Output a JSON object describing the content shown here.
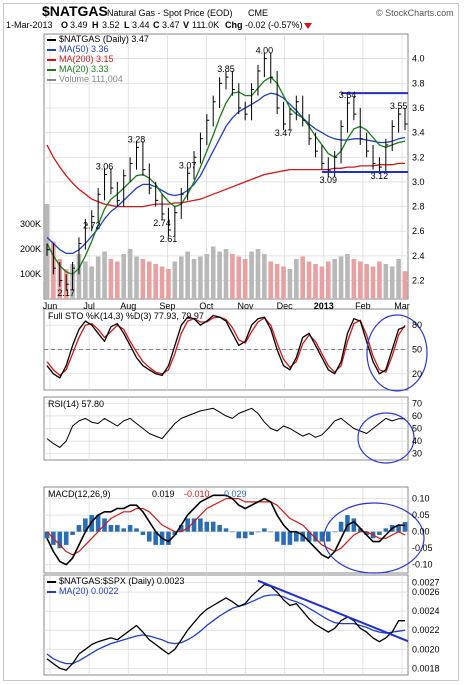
{
  "header": {
    "symbol": "$NATGAS",
    "name": "Natural Gas - Spot Price (EOD)",
    "exchange": "CME",
    "brand": "© StockCharts.com",
    "date": "1-Mar-2013",
    "open_label": "O",
    "open": "3.49",
    "high_label": "H",
    "high": "3.52",
    "low_label": "L",
    "low": "3.44",
    "close_label": "C",
    "close": "3.47",
    "volume_label": "V",
    "volume": "111.0K",
    "change_label": "Chg",
    "change": "-0.02 (-0.57%)"
  },
  "colors": {
    "price": "#000000",
    "ma50": "#1f3fbf",
    "ma200": "#cc1a1a",
    "ma20": "#1a7a1a",
    "volume_up": "#b8b8b8",
    "volume_down": "#e8a0a0",
    "trend": "#1f2fd0",
    "circle": "#2a3ad0",
    "macd_hist": "#2a6db5",
    "sto_k": "#000000",
    "sto_d": "#cc1a1a",
    "macd_signal": "#cc1a1a",
    "grid": "#d8d8d8"
  },
  "chart_data": [
    {
      "type": "line",
      "title": "$NATGAS (Daily) 3.47",
      "x_labels": [
        "Jun",
        "Jul",
        "Aug",
        "Sep",
        "Oct",
        "Nov",
        "Dec",
        "2013",
        "Feb",
        "Mar"
      ],
      "ylim": [
        2.05,
        4.2
      ],
      "yticks": [
        "2.2",
        "2.4",
        "2.6",
        "2.8",
        "3.0",
        "3.2",
        "3.4",
        "3.6",
        "3.8",
        "4.0"
      ],
      "ytick_values": [
        2.2,
        2.4,
        2.6,
        2.8,
        3.0,
        3.2,
        3.4,
        3.6,
        3.8,
        4.0
      ],
      "volume_ticks": [
        "100K",
        "200K",
        "300K"
      ],
      "volume_tick_values": [
        100000,
        200000,
        300000
      ],
      "volume_max": 420000,
      "legend": [
        {
          "label": "$NATGAS (Daily) 3.47",
          "color": "#000000"
        },
        {
          "label": "MA(50) 3.36",
          "color": "#1f3fbf"
        },
        {
          "label": "MA(200) 3.15",
          "color": "#cc1a1a"
        },
        {
          "label": "MA(20) 3.33",
          "color": "#1a7a1a"
        },
        {
          "label": "Volume 111,004",
          "color": "#888888"
        }
      ],
      "price": [
        2.45,
        2.3,
        2.2,
        2.17,
        2.3,
        2.5,
        2.65,
        2.72,
        2.9,
        3.06,
        2.95,
        2.85,
        3.05,
        3.15,
        3.28,
        3.1,
        2.95,
        2.85,
        2.74,
        2.61,
        2.75,
        2.9,
        3.07,
        3.2,
        3.35,
        3.5,
        3.65,
        3.8,
        3.85,
        3.75,
        3.6,
        3.55,
        3.75,
        3.9,
        4.0,
        3.85,
        3.6,
        3.47,
        3.55,
        3.65,
        3.5,
        3.35,
        3.25,
        3.15,
        3.09,
        3.2,
        3.45,
        3.64,
        3.55,
        3.35,
        3.25,
        3.15,
        3.12,
        3.3,
        3.45,
        3.55,
        3.47
      ],
      "ma50": [
        2.55,
        2.5,
        2.45,
        2.42,
        2.42,
        2.45,
        2.5,
        2.56,
        2.62,
        2.7,
        2.76,
        2.8,
        2.85,
        2.9,
        2.95,
        2.98,
        2.98,
        2.96,
        2.93,
        2.9,
        2.89,
        2.9,
        2.93,
        2.98,
        3.05,
        3.15,
        3.25,
        3.35,
        3.45,
        3.52,
        3.57,
        3.6,
        3.63,
        3.66,
        3.7,
        3.72,
        3.71,
        3.68,
        3.63,
        3.58,
        3.52,
        3.47,
        3.43,
        3.4,
        3.37,
        3.35,
        3.34,
        3.34,
        3.35,
        3.35,
        3.34,
        3.33,
        3.32,
        3.32,
        3.33,
        3.35,
        3.36
      ],
      "ma200": [
        3.3,
        3.2,
        3.12,
        3.05,
        2.99,
        2.94,
        2.9,
        2.86,
        2.84,
        2.82,
        2.81,
        2.8,
        2.8,
        2.8,
        2.8,
        2.8,
        2.81,
        2.82,
        2.82,
        2.82,
        2.83,
        2.83,
        2.84,
        2.85,
        2.86,
        2.88,
        2.9,
        2.92,
        2.94,
        2.96,
        2.98,
        3.0,
        3.02,
        3.04,
        3.06,
        3.07,
        3.08,
        3.09,
        3.1,
        3.1,
        3.1,
        3.1,
        3.1,
        3.1,
        3.1,
        3.11,
        3.11,
        3.12,
        3.12,
        3.13,
        3.13,
        3.13,
        3.14,
        3.14,
        3.14,
        3.15,
        3.15
      ],
      "ma20": [
        2.5,
        2.4,
        2.32,
        2.27,
        2.25,
        2.3,
        2.4,
        2.52,
        2.65,
        2.78,
        2.86,
        2.9,
        2.95,
        3.0,
        3.05,
        3.06,
        3.03,
        2.98,
        2.9,
        2.84,
        2.8,
        2.82,
        2.9,
        3.0,
        3.12,
        3.25,
        3.38,
        3.52,
        3.64,
        3.72,
        3.73,
        3.7,
        3.7,
        3.76,
        3.82,
        3.85,
        3.8,
        3.7,
        3.6,
        3.55,
        3.52,
        3.45,
        3.37,
        3.3,
        3.23,
        3.2,
        3.25,
        3.35,
        3.43,
        3.45,
        3.42,
        3.36,
        3.3,
        3.28,
        3.3,
        3.32,
        3.33
      ],
      "volume": [
        380000,
        230000,
        160000,
        120000,
        140000,
        180000,
        150000,
        130000,
        170000,
        190000,
        160000,
        150000,
        180000,
        200000,
        170000,
        160000,
        150000,
        140000,
        130000,
        120000,
        150000,
        170000,
        190000,
        160000,
        170000,
        180000,
        210000,
        190000,
        200000,
        180000,
        170000,
        160000,
        190000,
        200000,
        180000,
        150000,
        140000,
        130000,
        120000,
        160000,
        170000,
        150000,
        140000,
        130000,
        150000,
        160000,
        170000,
        180000,
        160000,
        150000,
        140000,
        130000,
        150000,
        140000,
        130000,
        160000,
        111004
      ],
      "annotations": [
        "2.17",
        "2.72",
        "3.06",
        "3.28",
        "2.61",
        "2.74",
        "3.07",
        "3.85",
        "4.00",
        "3.47",
        "3.64",
        "3.55",
        "3.09",
        "3.12"
      ],
      "annotation_values": [
        {
          "i": 3,
          "v": 2.17
        },
        {
          "i": 7,
          "v": 2.72
        },
        {
          "i": 9,
          "v": 3.06
        },
        {
          "i": 14,
          "v": 3.28
        },
        {
          "i": 19,
          "v": 2.61
        },
        {
          "i": 18,
          "v": 2.74
        },
        {
          "i": 22,
          "v": 3.07
        },
        {
          "i": 28,
          "v": 3.85
        },
        {
          "i": 34,
          "v": 4.0
        },
        {
          "i": 37,
          "v": 3.47
        },
        {
          "i": 47,
          "v": 3.64
        },
        {
          "i": 55,
          "v": 3.55
        },
        {
          "i": 44,
          "v": 3.09
        },
        {
          "i": 52,
          "v": 3.12
        }
      ],
      "resistance": 3.72,
      "support": 3.08
    },
    {
      "type": "line",
      "title": "Full STO %K(14,3) %D(3) 77.93, 79.97",
      "k_label": "77.93",
      "d_label": "79.97",
      "ylim": [
        0,
        100
      ],
      "yticks": [
        "20",
        "50",
        "80"
      ],
      "ytick_values": [
        20,
        50,
        80
      ],
      "k": [
        30,
        20,
        15,
        30,
        55,
        75,
        85,
        80,
        70,
        60,
        78,
        82,
        70,
        55,
        40,
        30,
        25,
        20,
        18,
        30,
        55,
        80,
        90,
        88,
        80,
        85,
        92,
        90,
        85,
        70,
        55,
        60,
        80,
        88,
        90,
        75,
        50,
        30,
        25,
        40,
        65,
        70,
        55,
        40,
        25,
        20,
        35,
        70,
        88,
        85,
        60,
        35,
        20,
        25,
        50,
        75,
        78
      ],
      "d": [
        35,
        25,
        18,
        25,
        45,
        65,
        80,
        82,
        75,
        65,
        72,
        80,
        75,
        60,
        47,
        35,
        28,
        22,
        20,
        25,
        45,
        70,
        85,
        88,
        84,
        84,
        89,
        90,
        87,
        77,
        62,
        58,
        72,
        84,
        89,
        80,
        58,
        38,
        28,
        35,
        57,
        68,
        60,
        45,
        30,
        22,
        30,
        60,
        82,
        86,
        68,
        42,
        25,
        22,
        42,
        68,
        79.97
      ]
    },
    {
      "type": "line",
      "title": "RSI(14) 57.80",
      "value_label": "57.80",
      "ylim": [
        25,
        75
      ],
      "yticks": [
        "30",
        "40",
        "50",
        "60",
        "70"
      ],
      "ytick_values": [
        30,
        40,
        50,
        60,
        70
      ],
      "rsi": [
        42,
        38,
        35,
        40,
        52,
        56,
        58,
        55,
        54,
        58,
        55,
        52,
        56,
        58,
        54,
        50,
        46,
        44,
        42,
        48,
        54,
        58,
        60,
        62,
        64,
        65,
        66,
        63,
        60,
        58,
        62,
        64,
        66,
        62,
        55,
        50,
        48,
        52,
        50,
        47,
        44,
        46,
        43,
        45,
        50,
        56,
        58,
        54,
        50,
        48,
        46,
        50,
        54,
        58,
        56,
        57.8,
        57.8
      ]
    },
    {
      "type": "line",
      "title": "MACD(12,26,9)",
      "macd_label": "0.019",
      "signal_label": "-0.010",
      "hist_label": "0.029",
      "ylim": [
        -0.125,
        0.135
      ],
      "yticks": [
        "-0.10",
        "-0.05",
        "0.00",
        "0.05",
        "0.10"
      ],
      "ytick_values": [
        -0.1,
        -0.05,
        0,
        0.05,
        0.1
      ],
      "macd": [
        -0.02,
        -0.06,
        -0.09,
        -0.1,
        -0.08,
        -0.04,
        0.0,
        0.03,
        0.05,
        0.06,
        0.06,
        0.07,
        0.07,
        0.08,
        0.08,
        0.06,
        0.03,
        0.0,
        -0.02,
        -0.03,
        -0.01,
        0.02,
        0.05,
        0.07,
        0.09,
        0.1,
        0.11,
        0.11,
        0.11,
        0.1,
        0.08,
        0.07,
        0.08,
        0.09,
        0.1,
        0.09,
        0.05,
        0.02,
        0.0,
        0.0,
        -0.01,
        -0.03,
        -0.05,
        -0.07,
        -0.08,
        -0.06,
        -0.02,
        0.02,
        0.03,
        0.01,
        -0.01,
        -0.03,
        -0.03,
        -0.01,
        0.01,
        0.02,
        0.019
      ],
      "signal": [
        0.0,
        -0.02,
        -0.04,
        -0.06,
        -0.07,
        -0.06,
        -0.04,
        -0.02,
        0.0,
        0.02,
        0.04,
        0.05,
        0.06,
        0.06,
        0.07,
        0.07,
        0.06,
        0.04,
        0.02,
        0.01,
        0.0,
        0.0,
        0.01,
        0.03,
        0.05,
        0.07,
        0.08,
        0.09,
        0.1,
        0.1,
        0.1,
        0.09,
        0.09,
        0.09,
        0.09,
        0.09,
        0.08,
        0.06,
        0.04,
        0.03,
        0.02,
        0.0,
        -0.02,
        -0.04,
        -0.05,
        -0.06,
        -0.05,
        -0.03,
        -0.01,
        0.0,
        0.0,
        -0.01,
        -0.02,
        -0.02,
        -0.01,
        0.0,
        -0.01
      ]
    },
    {
      "type": "line",
      "title": "$NATGAS:$SPX (Daily) 0.0023",
      "legend": [
        {
          "label": "$NATGAS:$SPX (Daily) 0.0023",
          "color": "#000000"
        },
        {
          "label": "MA(20) 0.0022",
          "color": "#1f3fbf"
        }
      ],
      "ylim": [
        0.00173,
        0.00278
      ],
      "yticks": [
        "0.0018",
        "0.0020",
        "0.0022",
        "0.0024",
        "0.0026",
        "0.0027"
      ],
      "ytick_values": [
        0.0018,
        0.002,
        0.0022,
        0.0024,
        0.0026,
        0.0027
      ],
      "ratio": [
        0.0019,
        0.00185,
        0.0018,
        0.00178,
        0.00185,
        0.00195,
        0.002,
        0.00205,
        0.00208,
        0.0021,
        0.00212,
        0.0021,
        0.00215,
        0.0022,
        0.00225,
        0.00218,
        0.0021,
        0.00205,
        0.002,
        0.00195,
        0.002,
        0.0021,
        0.0022,
        0.00228,
        0.00236,
        0.00242,
        0.00246,
        0.0025,
        0.00254,
        0.0025,
        0.00245,
        0.00248,
        0.00256,
        0.00262,
        0.00268,
        0.00266,
        0.0026,
        0.00252,
        0.00246,
        0.00248,
        0.0024,
        0.00232,
        0.00226,
        0.00222,
        0.00218,
        0.00222,
        0.0023,
        0.00234,
        0.0023,
        0.00222,
        0.00218,
        0.00212,
        0.00208,
        0.00212,
        0.00218,
        0.0023,
        0.0023
      ],
      "ma20": [
        0.00195,
        0.0019,
        0.00187,
        0.00185,
        0.00185,
        0.00188,
        0.00192,
        0.00196,
        0.002,
        0.00203,
        0.00206,
        0.00208,
        0.0021,
        0.00212,
        0.00214,
        0.00215,
        0.00214,
        0.00212,
        0.0021,
        0.00207,
        0.00206,
        0.00207,
        0.0021,
        0.00214,
        0.00219,
        0.00225,
        0.0023,
        0.00235,
        0.00239,
        0.00243,
        0.00245,
        0.00247,
        0.0025,
        0.00253,
        0.00256,
        0.00257,
        0.00257,
        0.00255,
        0.00252,
        0.0025,
        0.00247,
        0.00243,
        0.00239,
        0.00235,
        0.00231,
        0.00228,
        0.00227,
        0.00227,
        0.00227,
        0.00225,
        0.00223,
        0.0022,
        0.00218,
        0.00217,
        0.00218,
        0.00219,
        0.0022
      ]
    }
  ]
}
